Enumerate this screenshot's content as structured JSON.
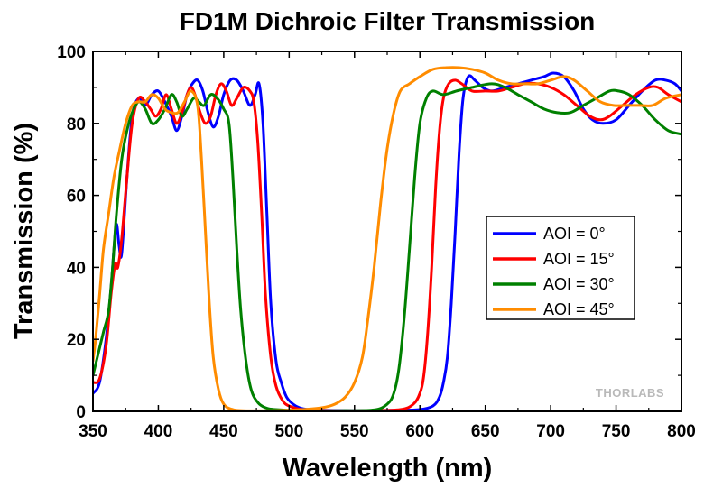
{
  "chart_data": {
    "type": "line",
    "title": "FD1M Dichroic Filter Transmission",
    "xlabel": "Wavelength (nm)",
    "ylabel": "Transmission (%)",
    "xlim": [
      350,
      800
    ],
    "ylim": [
      0,
      100
    ],
    "xticks": [
      350,
      400,
      450,
      500,
      550,
      600,
      650,
      700,
      750,
      800
    ],
    "yticks": [
      0,
      20,
      40,
      60,
      80,
      100
    ],
    "grid": false,
    "legend_position": "right-middle",
    "watermark": "THORLABS",
    "series": [
      {
        "name": "AOI = 0°",
        "color": "#0000ff",
        "points": [
          [
            350,
            5
          ],
          [
            355,
            8
          ],
          [
            360,
            20
          ],
          [
            364,
            35
          ],
          [
            366,
            45
          ],
          [
            368,
            52
          ],
          [
            370,
            46
          ],
          [
            372,
            44
          ],
          [
            376,
            65
          ],
          [
            380,
            82
          ],
          [
            385,
            87
          ],
          [
            390,
            85
          ],
          [
            395,
            88
          ],
          [
            400,
            89
          ],
          [
            405,
            86
          ],
          [
            410,
            82
          ],
          [
            414,
            78
          ],
          [
            418,
            82
          ],
          [
            422,
            88
          ],
          [
            426,
            91
          ],
          [
            430,
            92
          ],
          [
            434,
            89
          ],
          [
            438,
            83
          ],
          [
            442,
            79
          ],
          [
            446,
            82
          ],
          [
            450,
            88
          ],
          [
            455,
            92
          ],
          [
            460,
            92
          ],
          [
            465,
            89
          ],
          [
            470,
            85
          ],
          [
            474,
            88
          ],
          [
            477,
            91
          ],
          [
            480,
            80
          ],
          [
            483,
            55
          ],
          [
            486,
            30
          ],
          [
            490,
            14
          ],
          [
            494,
            8
          ],
          [
            498,
            4
          ],
          [
            503,
            2
          ],
          [
            508,
            1
          ],
          [
            515,
            0.5
          ],
          [
            525,
            0.3
          ],
          [
            550,
            0.2
          ],
          [
            580,
            0.3
          ],
          [
            600,
            0.5
          ],
          [
            610,
            1.5
          ],
          [
            615,
            4
          ],
          [
            618,
            8
          ],
          [
            621,
            15
          ],
          [
            624,
            30
          ],
          [
            627,
            50
          ],
          [
            630,
            72
          ],
          [
            633,
            87
          ],
          [
            637,
            93
          ],
          [
            642,
            92
          ],
          [
            648,
            90
          ],
          [
            655,
            89
          ],
          [
            665,
            90
          ],
          [
            675,
            91
          ],
          [
            685,
            92
          ],
          [
            695,
            93
          ],
          [
            702,
            94
          ],
          [
            710,
            93
          ],
          [
            718,
            89
          ],
          [
            725,
            84
          ],
          [
            732,
            81
          ],
          [
            740,
            80
          ],
          [
            750,
            81
          ],
          [
            760,
            85
          ],
          [
            770,
            89
          ],
          [
            780,
            92
          ],
          [
            788,
            92
          ],
          [
            795,
            91
          ],
          [
            800,
            89
          ]
        ]
      },
      {
        "name": "AOI = 15°",
        "color": "#ff0000",
        "points": [
          [
            350,
            8
          ],
          [
            355,
            9
          ],
          [
            360,
            18
          ],
          [
            364,
            33
          ],
          [
            367,
            41
          ],
          [
            369,
            40
          ],
          [
            372,
            48
          ],
          [
            376,
            65
          ],
          [
            380,
            80
          ],
          [
            385,
            87
          ],
          [
            390,
            86
          ],
          [
            394,
            84
          ],
          [
            398,
            82
          ],
          [
            402,
            84
          ],
          [
            406,
            88
          ],
          [
            410,
            84
          ],
          [
            414,
            80
          ],
          [
            418,
            83
          ],
          [
            422,
            88
          ],
          [
            425,
            90
          ],
          [
            428,
            88
          ],
          [
            432,
            83
          ],
          [
            436,
            80
          ],
          [
            440,
            82
          ],
          [
            444,
            88
          ],
          [
            448,
            91
          ],
          [
            452,
            89
          ],
          [
            456,
            85
          ],
          [
            460,
            87
          ],
          [
            465,
            90
          ],
          [
            470,
            89
          ],
          [
            473,
            86
          ],
          [
            476,
            75
          ],
          [
            479,
            55
          ],
          [
            482,
            32
          ],
          [
            486,
            15
          ],
          [
            490,
            7
          ],
          [
            495,
            3
          ],
          [
            500,
            1.5
          ],
          [
            510,
            0.5
          ],
          [
            530,
            0.2
          ],
          [
            560,
            0.2
          ],
          [
            585,
            0.5
          ],
          [
            595,
            2
          ],
          [
            600,
            5
          ],
          [
            603,
            10
          ],
          [
            606,
            22
          ],
          [
            609,
            40
          ],
          [
            612,
            62
          ],
          [
            615,
            78
          ],
          [
            618,
            87
          ],
          [
            622,
            91
          ],
          [
            627,
            92
          ],
          [
            632,
            91
          ],
          [
            640,
            89
          ],
          [
            650,
            89
          ],
          [
            660,
            89
          ],
          [
            670,
            90
          ],
          [
            680,
            91
          ],
          [
            690,
            91
          ],
          [
            700,
            90
          ],
          [
            710,
            88
          ],
          [
            720,
            85
          ],
          [
            730,
            82
          ],
          [
            738,
            81
          ],
          [
            745,
            82
          ],
          [
            755,
            85
          ],
          [
            765,
            88
          ],
          [
            775,
            90
          ],
          [
            782,
            90
          ],
          [
            790,
            88
          ],
          [
            800,
            86
          ]
        ]
      },
      {
        "name": "AOI = 30°",
        "color": "#008000",
        "points": [
          [
            350,
            10
          ],
          [
            354,
            16
          ],
          [
            358,
            22
          ],
          [
            362,
            28
          ],
          [
            365,
            40
          ],
          [
            368,
            55
          ],
          [
            372,
            70
          ],
          [
            376,
            78
          ],
          [
            380,
            83
          ],
          [
            385,
            86
          ],
          [
            390,
            84
          ],
          [
            395,
            80
          ],
          [
            400,
            81
          ],
          [
            405,
            84
          ],
          [
            410,
            88
          ],
          [
            414,
            86
          ],
          [
            418,
            82
          ],
          [
            422,
            84
          ],
          [
            427,
            87
          ],
          [
            431,
            86
          ],
          [
            435,
            85
          ],
          [
            440,
            88
          ],
          [
            445,
            87
          ],
          [
            450,
            84
          ],
          [
            454,
            80
          ],
          [
            457,
            65
          ],
          [
            460,
            45
          ],
          [
            463,
            28
          ],
          [
            467,
            14
          ],
          [
            471,
            6
          ],
          [
            476,
            2.5
          ],
          [
            482,
            1
          ],
          [
            490,
            0.5
          ],
          [
            510,
            0.2
          ],
          [
            540,
            0.2
          ],
          [
            565,
            0.4
          ],
          [
            575,
            2
          ],
          [
            580,
            5
          ],
          [
            584,
            12
          ],
          [
            588,
            26
          ],
          [
            592,
            45
          ],
          [
            596,
            65
          ],
          [
            600,
            80
          ],
          [
            605,
            87
          ],
          [
            610,
            89
          ],
          [
            618,
            88
          ],
          [
            628,
            89
          ],
          [
            640,
            90
          ],
          [
            655,
            91
          ],
          [
            665,
            90
          ],
          [
            675,
            88
          ],
          [
            685,
            86
          ],
          [
            695,
            84
          ],
          [
            705,
            83
          ],
          [
            715,
            83
          ],
          [
            725,
            85
          ],
          [
            735,
            87
          ],
          [
            745,
            89
          ],
          [
            752,
            89
          ],
          [
            760,
            88
          ],
          [
            770,
            85
          ],
          [
            780,
            81
          ],
          [
            790,
            78
          ],
          [
            800,
            77
          ]
        ]
      },
      {
        "name": "AOI = 45°",
        "color": "#ff8c00",
        "points": [
          [
            350,
            14
          ],
          [
            352,
            20
          ],
          [
            355,
            32
          ],
          [
            358,
            45
          ],
          [
            362,
            55
          ],
          [
            366,
            65
          ],
          [
            370,
            72
          ],
          [
            375,
            80
          ],
          [
            380,
            85
          ],
          [
            385,
            86
          ],
          [
            390,
            86
          ],
          [
            395,
            88
          ],
          [
            400,
            87
          ],
          [
            405,
            84
          ],
          [
            410,
            83
          ],
          [
            415,
            83
          ],
          [
            420,
            86
          ],
          [
            425,
            89
          ],
          [
            430,
            85
          ],
          [
            433,
            70
          ],
          [
            436,
            50
          ],
          [
            439,
            30
          ],
          [
            442,
            15
          ],
          [
            446,
            6
          ],
          [
            450,
            2
          ],
          [
            456,
            0.6
          ],
          [
            465,
            0.2
          ],
          [
            490,
            0.2
          ],
          [
            510,
            0.5
          ],
          [
            525,
            1
          ],
          [
            535,
            2
          ],
          [
            543,
            4
          ],
          [
            550,
            8
          ],
          [
            556,
            15
          ],
          [
            560,
            25
          ],
          [
            565,
            40
          ],
          [
            570,
            58
          ],
          [
            575,
            73
          ],
          [
            580,
            83
          ],
          [
            585,
            89
          ],
          [
            592,
            91
          ],
          [
            600,
            93
          ],
          [
            610,
            95
          ],
          [
            620,
            95.5
          ],
          [
            630,
            95.5
          ],
          [
            640,
            95
          ],
          [
            650,
            94
          ],
          [
            660,
            92
          ],
          [
            670,
            91
          ],
          [
            680,
            91
          ],
          [
            690,
            91
          ],
          [
            700,
            92
          ],
          [
            710,
            93
          ],
          [
            718,
            92
          ],
          [
            728,
            89
          ],
          [
            738,
            86
          ],
          [
            748,
            85
          ],
          [
            758,
            85
          ],
          [
            768,
            85
          ],
          [
            778,
            85
          ],
          [
            788,
            87
          ],
          [
            800,
            88
          ]
        ]
      }
    ]
  }
}
